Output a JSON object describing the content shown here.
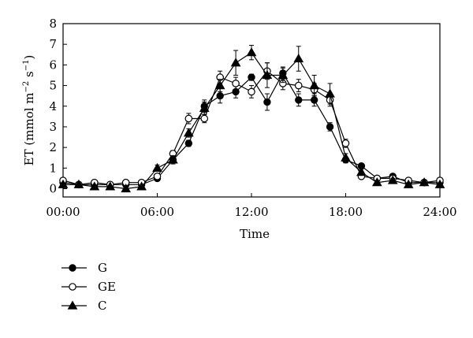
{
  "chart_data": {
    "type": "line",
    "title": "",
    "xlabel": "Time",
    "ylabel": "ET (mmol m⁻² s⁻¹)",
    "ylabel_parts": {
      "main": "ET (mmol m",
      "exp1": "−2",
      "mid": " s",
      "exp2": "−1",
      "end": ")"
    },
    "xlim": [
      0,
      24
    ],
    "ylim": [
      -0.4,
      8
    ],
    "x_ticks": [
      0,
      6,
      12,
      18,
      24
    ],
    "x_tick_labels": [
      "00:00",
      "06:00",
      "12:00",
      "18:00",
      "24:00"
    ],
    "y_ticks": [
      0,
      1,
      2,
      3,
      4,
      5,
      6,
      7,
      8
    ],
    "y_tick_labels": [
      "0",
      "1",
      "2",
      "3",
      "4",
      "5",
      "6",
      "7",
      "8"
    ],
    "grid": false,
    "legend_position": "bottom-left",
    "x": [
      0,
      1,
      2,
      3,
      4,
      5,
      6,
      7,
      8,
      9,
      10,
      11,
      12,
      13,
      14,
      15,
      16,
      17,
      18,
      19,
      20,
      21,
      22,
      23,
      24
    ],
    "series": [
      {
        "name": "G",
        "marker": "filled-circle",
        "values": [
          0.3,
          0.2,
          0.2,
          0.2,
          0.2,
          0.2,
          0.5,
          1.4,
          2.2,
          4.0,
          4.5,
          4.7,
          5.4,
          4.2,
          5.6,
          4.3,
          4.3,
          3.0,
          1.4,
          1.1,
          0.5,
          0.6,
          0.3,
          0.3,
          0.3
        ],
        "errors": [
          0.05,
          0.05,
          0.05,
          0.05,
          0.05,
          0.05,
          0.1,
          0.15,
          0.15,
          0.3,
          0.35,
          0.3,
          0.15,
          0.4,
          0.3,
          0.3,
          0.3,
          0.2,
          0.15,
          0.1,
          0.1,
          0.1,
          0.05,
          0.05,
          0.05
        ]
      },
      {
        "name": "GE",
        "marker": "open-circle",
        "values": [
          0.4,
          0.2,
          0.3,
          0.2,
          0.3,
          0.3,
          0.6,
          1.7,
          3.4,
          3.4,
          5.4,
          5.1,
          4.7,
          5.7,
          5.1,
          5.0,
          4.8,
          4.3,
          2.2,
          0.6,
          0.5,
          0.5,
          0.4,
          0.3,
          0.4
        ],
        "errors": [
          0.05,
          0.05,
          0.05,
          0.05,
          0.05,
          0.05,
          0.1,
          0.15,
          0.25,
          0.2,
          0.3,
          0.3,
          0.3,
          0.4,
          0.3,
          0.3,
          0.3,
          0.3,
          0.2,
          0.1,
          0.1,
          0.1,
          0.05,
          0.05,
          0.05
        ]
      },
      {
        "name": "C",
        "marker": "filled-triangle",
        "values": [
          0.2,
          0.2,
          0.1,
          0.1,
          0.0,
          0.1,
          1.0,
          1.4,
          2.7,
          3.9,
          5.0,
          6.1,
          6.6,
          5.5,
          5.5,
          6.3,
          5.0,
          4.6,
          1.5,
          0.8,
          0.3,
          0.4,
          0.2,
          0.3,
          0.2
        ],
        "errors": [
          0.05,
          0.05,
          0.05,
          0.05,
          0.1,
          0.05,
          0.15,
          0.2,
          0.2,
          0.3,
          0.3,
          0.6,
          0.35,
          0.6,
          0.35,
          0.6,
          0.5,
          0.5,
          0.2,
          0.15,
          0.1,
          0.1,
          0.05,
          0.05,
          0.05
        ]
      }
    ]
  }
}
